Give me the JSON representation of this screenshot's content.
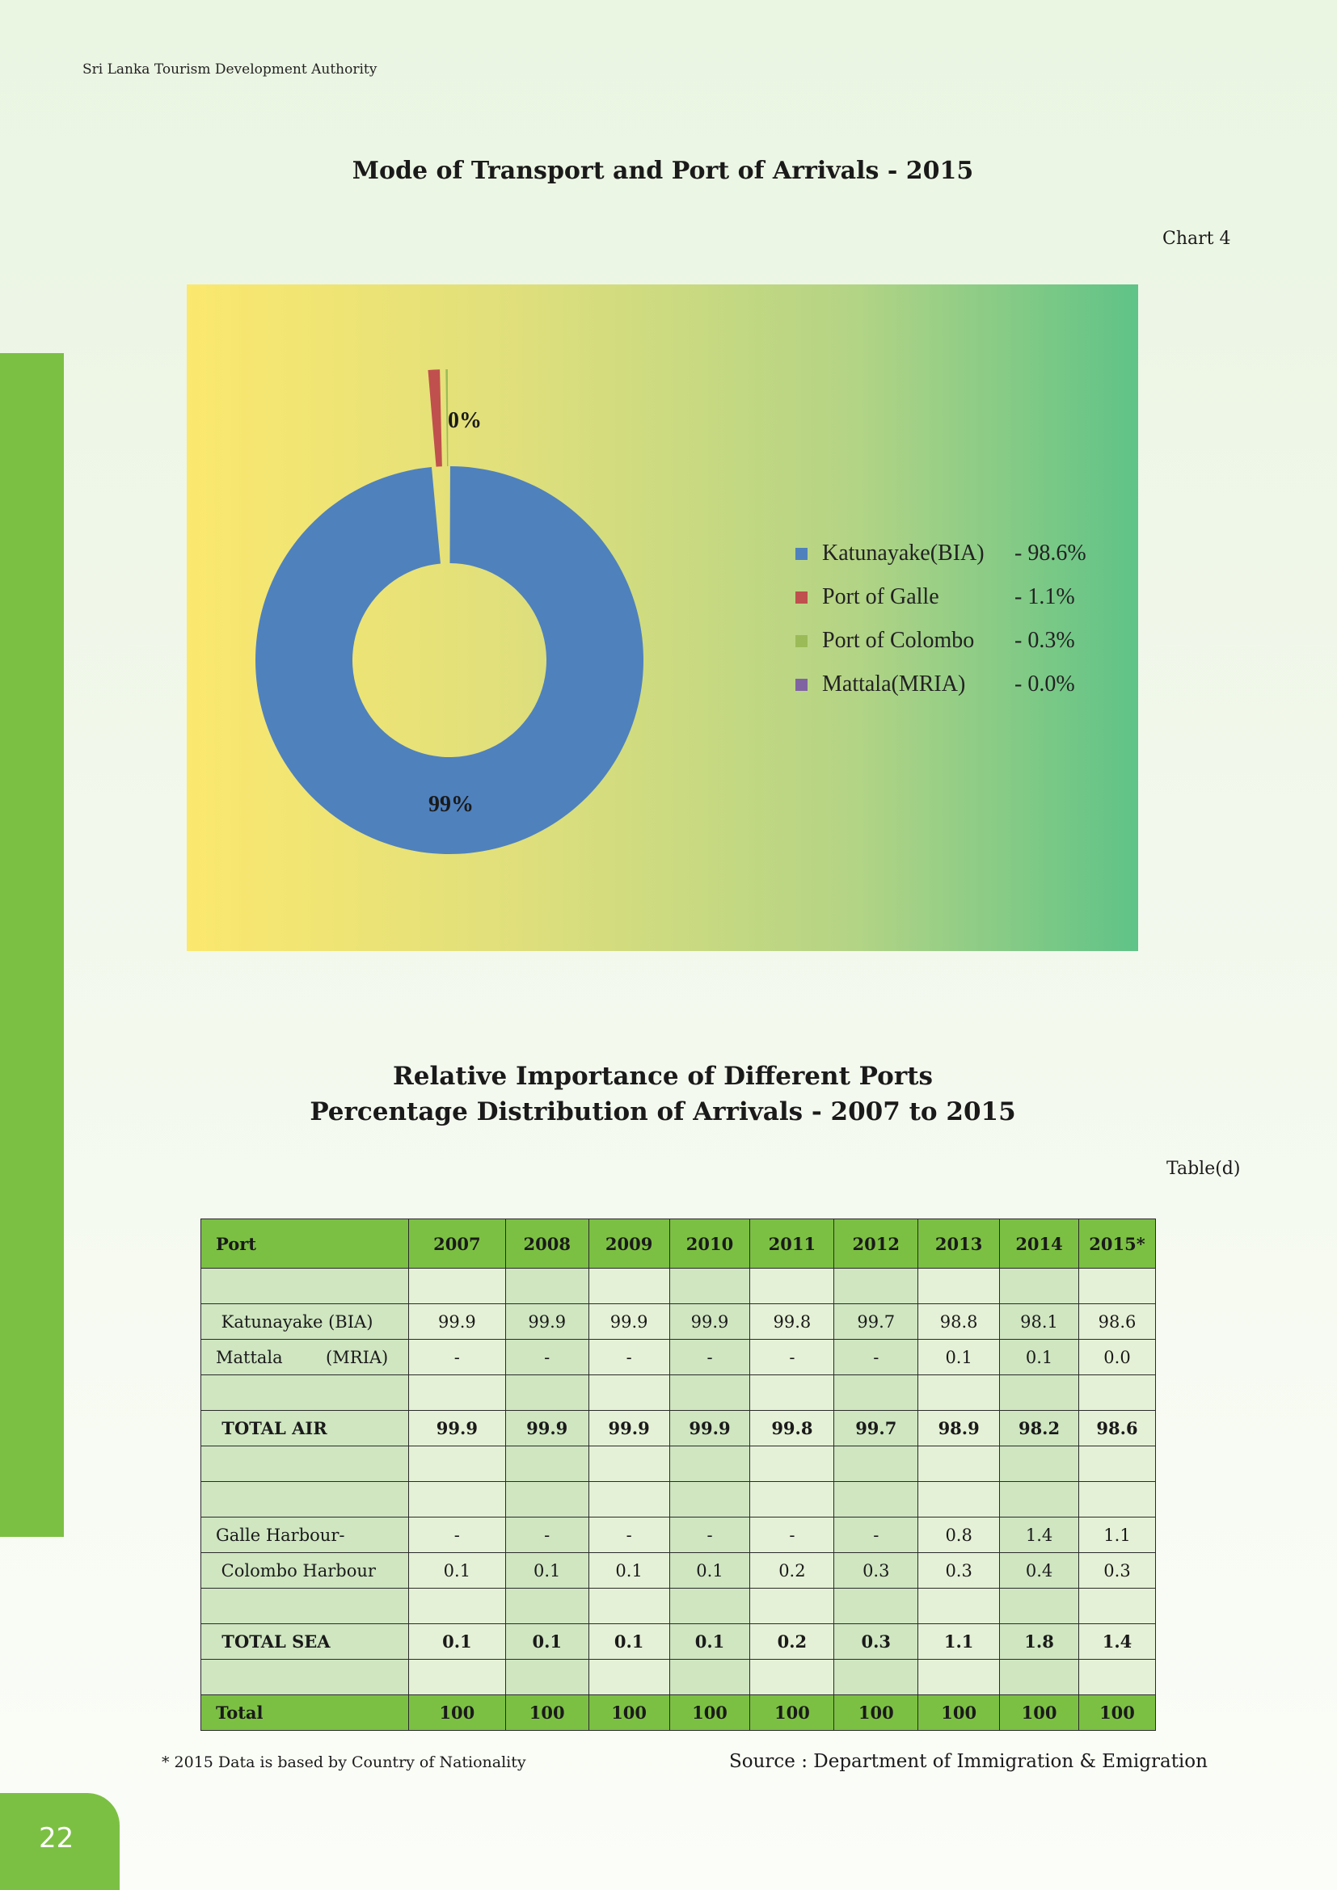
{
  "header": {
    "org": "Sri Lanka Tourism Development Authority"
  },
  "page_number": "22",
  "chart_section": {
    "title": "Mode of Transport  and Port of Arrivals - 2015",
    "ref": "Chart 4"
  },
  "chart_data": {
    "type": "pie",
    "donut": true,
    "title": "Mode of Transport  and Port of Arrivals - 2015",
    "slices": [
      {
        "name": "Katunayake(BIA)",
        "value": 98.6,
        "legend_value": "- 98.6%",
        "color": "#4f81bd"
      },
      {
        "name": "Port of Galle",
        "value": 1.1,
        "legend_value": "-  1.1%",
        "color": "#c0504d"
      },
      {
        "name": "Port of Colombo",
        "value": 0.3,
        "legend_value": "-  0.3%",
        "color": "#9bbb59"
      },
      {
        "name": "Mattala(MRIA)",
        "value": 0.0,
        "legend_value": "-  0.0%",
        "color": "#8064a2"
      }
    ],
    "data_labels": [
      "99%",
      "0%"
    ],
    "legend_position": "right"
  },
  "table_section": {
    "title_line1": "Relative Importance of Different Ports",
    "title_line2": "Percentage Distribution of Arrivals - 2007 to 2015",
    "ref": "Table(d)"
  },
  "table": {
    "headers": [
      "Port",
      "2007",
      "2008",
      "2009",
      "2010",
      "2011",
      "2012",
      "2013",
      "2014",
      "2015*"
    ],
    "rows": [
      {
        "label": "",
        "values": [
          "",
          "",
          "",
          "",
          "",
          "",
          "",
          "",
          ""
        ]
      },
      {
        "label": " Katunayake (BIA)",
        "values": [
          "99.9",
          "99.9",
          "99.9",
          "99.9",
          "99.8",
          "99.7",
          "98.8",
          "98.1",
          "98.6"
        ]
      },
      {
        "label": "Mattala        (MRIA)",
        "values": [
          "-",
          "-",
          "-",
          "-",
          "-",
          "-",
          "0.1",
          "0.1",
          "0.0"
        ]
      },
      {
        "label": "",
        "values": [
          "",
          "",
          "",
          "",
          "",
          "",
          "",
          "",
          ""
        ]
      },
      {
        "label": " TOTAL AIR",
        "values": [
          "99.9",
          "99.9",
          "99.9",
          "99.9",
          "99.8",
          "99.7",
          "98.9",
          "98.2",
          "98.6"
        ],
        "bold": true
      },
      {
        "label": "",
        "values": [
          "",
          "",
          "",
          "",
          "",
          "",
          "",
          "",
          ""
        ]
      },
      {
        "label": "",
        "values": [
          "",
          "",
          "",
          "",
          "",
          "",
          "",
          "",
          ""
        ]
      },
      {
        "label": "Galle Harbour-",
        "values": [
          "-",
          "-",
          "-",
          "-",
          "-",
          "-",
          "0.8",
          "1.4",
          "1.1"
        ]
      },
      {
        "label": " Colombo Harbour",
        "values": [
          "0.1",
          "0.1",
          "0.1",
          "0.1",
          "0.2",
          "0.3",
          "0.3",
          "0.4",
          "0.3"
        ]
      },
      {
        "label": "",
        "values": [
          "",
          "",
          "",
          "",
          "",
          "",
          "",
          "",
          ""
        ]
      },
      {
        "label": " TOTAL SEA",
        "values": [
          "0.1",
          "0.1",
          "0.1",
          "0.1",
          "0.2",
          "0.3",
          "1.1",
          "1.8",
          "1.4"
        ],
        "bold": true
      },
      {
        "label": "",
        "values": [
          "",
          "",
          "",
          "",
          "",
          "",
          "",
          "",
          ""
        ]
      }
    ],
    "total": {
      "label": "Total",
      "values": [
        "100",
        "100",
        "100",
        "100",
        "100",
        "100",
        "100",
        "100",
        "100"
      ]
    }
  },
  "footnote": "* 2015 Data is based by Country of Nationality",
  "source": "Source : Department of Immigration & Emigration"
}
